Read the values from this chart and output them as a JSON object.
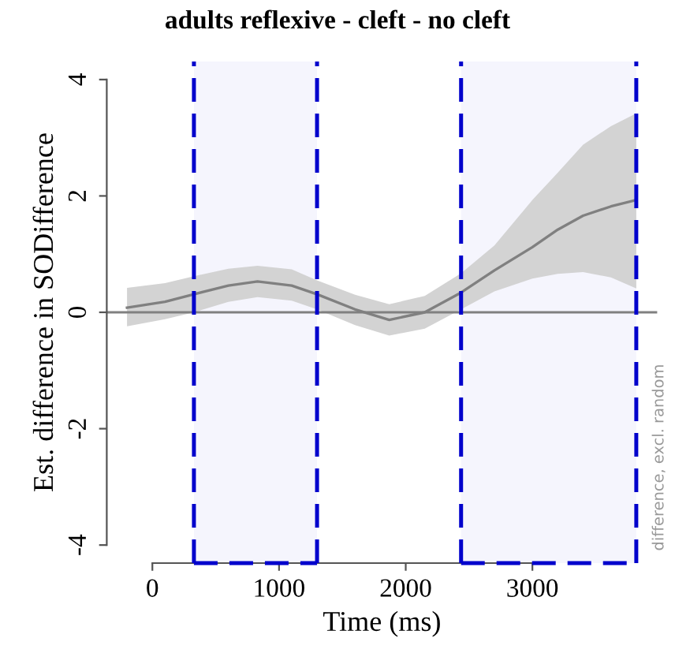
{
  "chart_data": {
    "type": "line",
    "title": "adults reflexive - cleft - no cleft",
    "xlabel": "Time (ms)",
    "ylabel": "Est. difference in SODifference",
    "annotations": [
      "difference, excl. random"
    ],
    "series": [
      {
        "x": [
          -200,
          100,
          328,
          600,
          830,
          1100,
          1300,
          1600,
          1870,
          2150,
          2437,
          2700,
          3000,
          3200,
          3400,
          3620,
          3820
        ],
        "values": [
          0.08,
          0.18,
          0.31,
          0.46,
          0.53,
          0.46,
          0.31,
          0.05,
          -0.13,
          0.0,
          0.34,
          0.72,
          1.12,
          1.42,
          1.66,
          1.82,
          1.93
        ],
        "lower": [
          -0.24,
          -0.12,
          0.0,
          0.18,
          0.26,
          0.2,
          0.05,
          -0.22,
          -0.4,
          -0.28,
          0.05,
          0.36,
          0.58,
          0.66,
          0.69,
          0.6,
          0.41
        ],
        "upper": [
          0.42,
          0.5,
          0.62,
          0.75,
          0.8,
          0.74,
          0.55,
          0.3,
          0.14,
          0.28,
          0.67,
          1.15,
          1.93,
          2.4,
          2.88,
          3.2,
          3.42
        ],
        "color": "#808080"
      }
    ],
    "ref_lines": [
      {
        "axis": "y",
        "value": 0,
        "color": "#808080",
        "line_style": "solid"
      },
      {
        "axis": "x",
        "value": 328,
        "color": "#0000cc",
        "line_style": "dashed"
      },
      {
        "axis": "x",
        "value": 1300,
        "color": "#0000cc",
        "line_style": "dashed"
      },
      {
        "axis": "x",
        "value": 2437,
        "color": "#0000cc",
        "line_style": "dashed"
      },
      {
        "axis": "x",
        "value": 3820,
        "color": "#0000cc",
        "line_style": "dashed"
      }
    ],
    "bands": [
      {
        "axis": "x",
        "from": 328,
        "to": 1300,
        "color": "#0000cc"
      },
      {
        "axis": "x",
        "from": 2437,
        "to": 3820,
        "color": "#0000cc"
      }
    ],
    "xlim": [
      -360,
      3985
    ],
    "xticks": [
      0,
      1000,
      2000,
      3000
    ],
    "ylim": [
      -4.31,
      4.31
    ],
    "yticks": [
      -4,
      -2,
      0,
      2,
      4
    ],
    "grid": false
  }
}
